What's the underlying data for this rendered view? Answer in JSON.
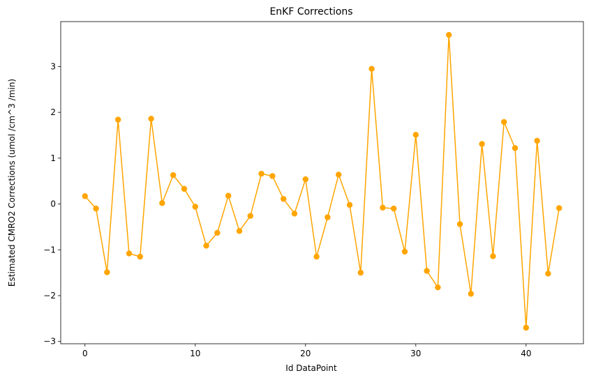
{
  "chart_data": {
    "type": "line",
    "title": "EnKF Corrections",
    "xlabel": "Id DataPoint",
    "ylabel": "Estimated CMRO2 Corrections (umol /cm^3 /min)",
    "xlim": [
      -2.2,
      45.2
    ],
    "ylim": [
      -3.05,
      3.98
    ],
    "x_ticks": [
      0,
      10,
      20,
      30,
      40
    ],
    "y_ticks": [
      -3,
      -2,
      -1,
      0,
      1,
      2,
      3
    ],
    "y_tick_labels": [
      "−3",
      "−2",
      "−1",
      "0",
      "1",
      "2",
      "3"
    ],
    "grid": false,
    "series": [
      {
        "color": "#FFA500",
        "marker": "circle",
        "x": [
          0,
          1,
          2,
          3,
          4,
          5,
          6,
          7,
          8,
          9,
          10,
          11,
          12,
          13,
          14,
          15,
          16,
          17,
          18,
          19,
          20,
          21,
          22,
          23,
          24,
          25,
          26,
          27,
          28,
          29,
          30,
          31,
          32,
          33,
          34,
          35,
          36,
          37,
          38,
          39,
          40,
          41,
          42,
          43
        ],
        "values": [
          0.17,
          -0.1,
          -1.49,
          1.84,
          -1.08,
          -1.15,
          1.86,
          0.02,
          0.63,
          0.33,
          -0.06,
          -0.91,
          -0.63,
          0.18,
          -0.59,
          -0.26,
          0.66,
          0.61,
          0.11,
          -0.21,
          0.54,
          -1.15,
          -0.29,
          0.64,
          -0.02,
          -1.5,
          2.95,
          -0.08,
          -0.1,
          -1.04,
          1.51,
          -1.46,
          -1.82,
          3.69,
          -0.44,
          -1.96,
          1.31,
          -1.14,
          1.79,
          1.22,
          -2.7,
          1.38,
          -1.52,
          -0.09
        ]
      }
    ]
  }
}
